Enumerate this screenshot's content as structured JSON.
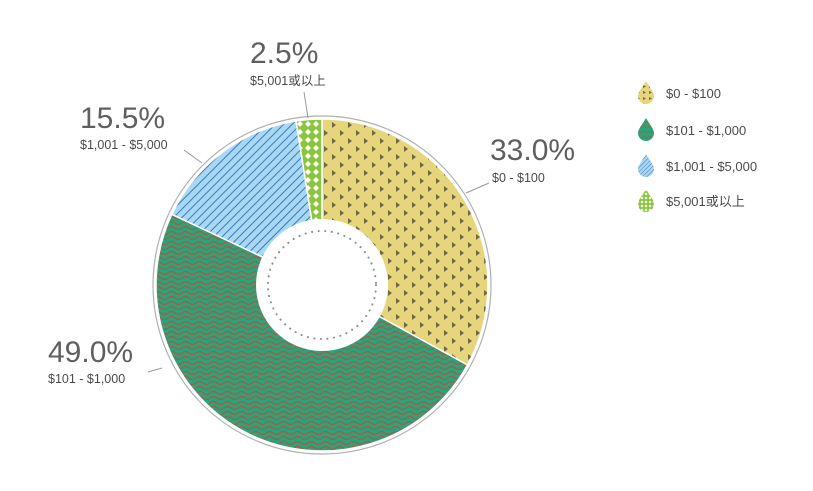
{
  "chart_data": {
    "type": "pie",
    "variant": "donut",
    "categories": [
      "$0 - $100",
      "$101 - $1,000",
      "$1,001 - $5,000",
      "$5,001或以上"
    ],
    "values": [
      33.0,
      49.0,
      15.5,
      2.5
    ],
    "value_labels": [
      "33.0%",
      "49.0%",
      "15.5%",
      "2.5%"
    ],
    "colors": [
      "#e6d57a",
      "#27a67a",
      "#a8d8f3",
      "#8cc63f"
    ],
    "pattern_colors": [
      "#6e6a48",
      "#a65a4a",
      "#3a78b8",
      "#ffffff"
    ],
    "patterns": [
      "triangles",
      "waves",
      "diagonal-stripes",
      "diamonds"
    ],
    "legend": {
      "position": "right",
      "entries": [
        "$0 - $100",
        "$101 - $1,000",
        "$1,001 - $5,000",
        "$5,001或以上"
      ]
    },
    "start_angle": "12 o'clock",
    "direction": "clockwise"
  }
}
